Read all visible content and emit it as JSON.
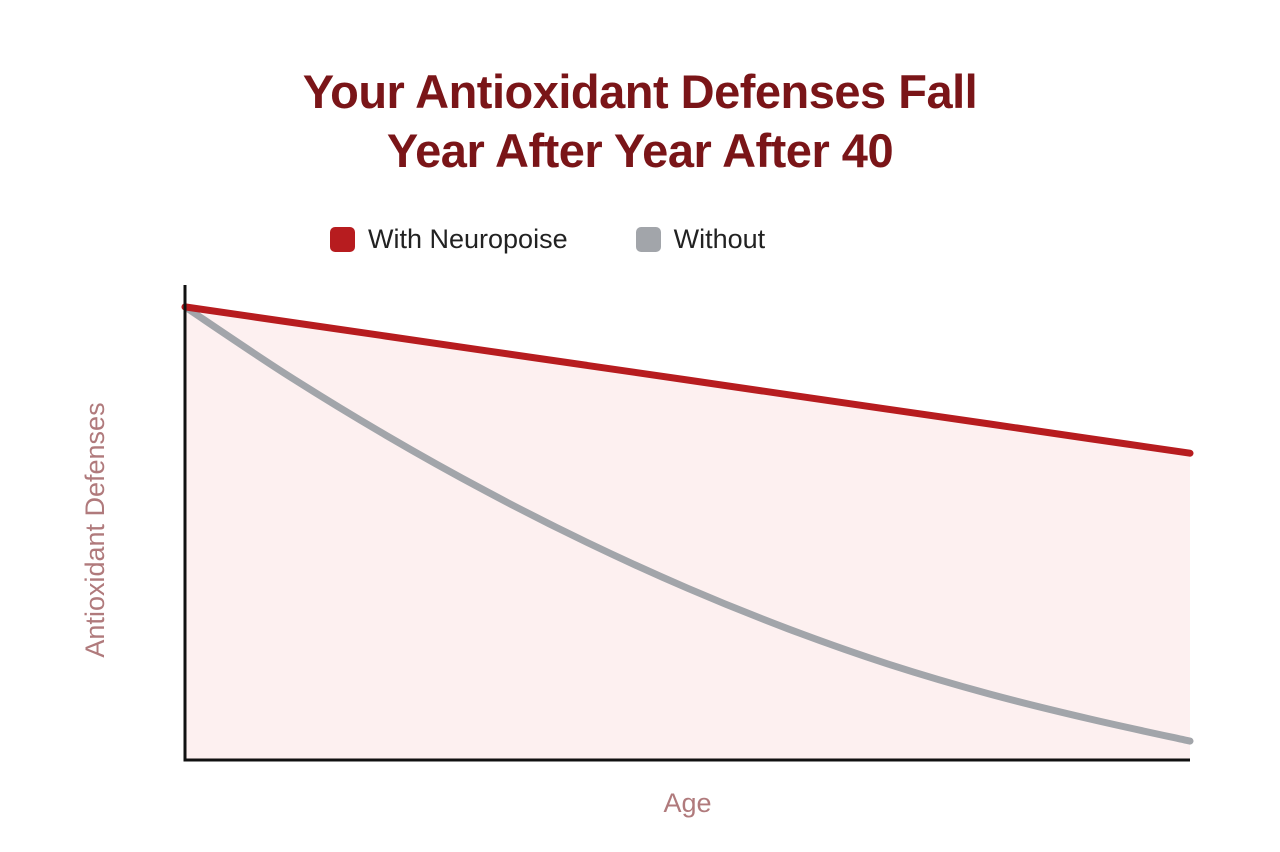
{
  "chart_data": {
    "type": "line",
    "title": [
      "Your Antioxidant Defenses Fall",
      "Year After Year After 40"
    ],
    "xlabel": "Age",
    "ylabel": "Antioxidant Defenses",
    "x": [
      0,
      0.1,
      0.2,
      0.3,
      0.4,
      0.5,
      0.6,
      0.7,
      0.8,
      0.9,
      1.0
    ],
    "xlim": [
      0,
      1
    ],
    "ylim": [
      0,
      1
    ],
    "series": [
      {
        "name": "With Neuropoise",
        "color": "#b71c1f",
        "values": [
          0.96,
          0.929,
          0.898,
          0.867,
          0.836,
          0.805,
          0.774,
          0.743,
          0.712,
          0.681,
          0.65
        ]
      },
      {
        "name": "Without",
        "color": "#a2a5aa",
        "values": [
          0.96,
          0.818,
          0.688,
          0.569,
          0.461,
          0.364,
          0.278,
          0.203,
          0.14,
          0.087,
          0.04
        ]
      }
    ],
    "fill_color": "#fdf0f0",
    "grid": false,
    "legend_position": "top"
  }
}
